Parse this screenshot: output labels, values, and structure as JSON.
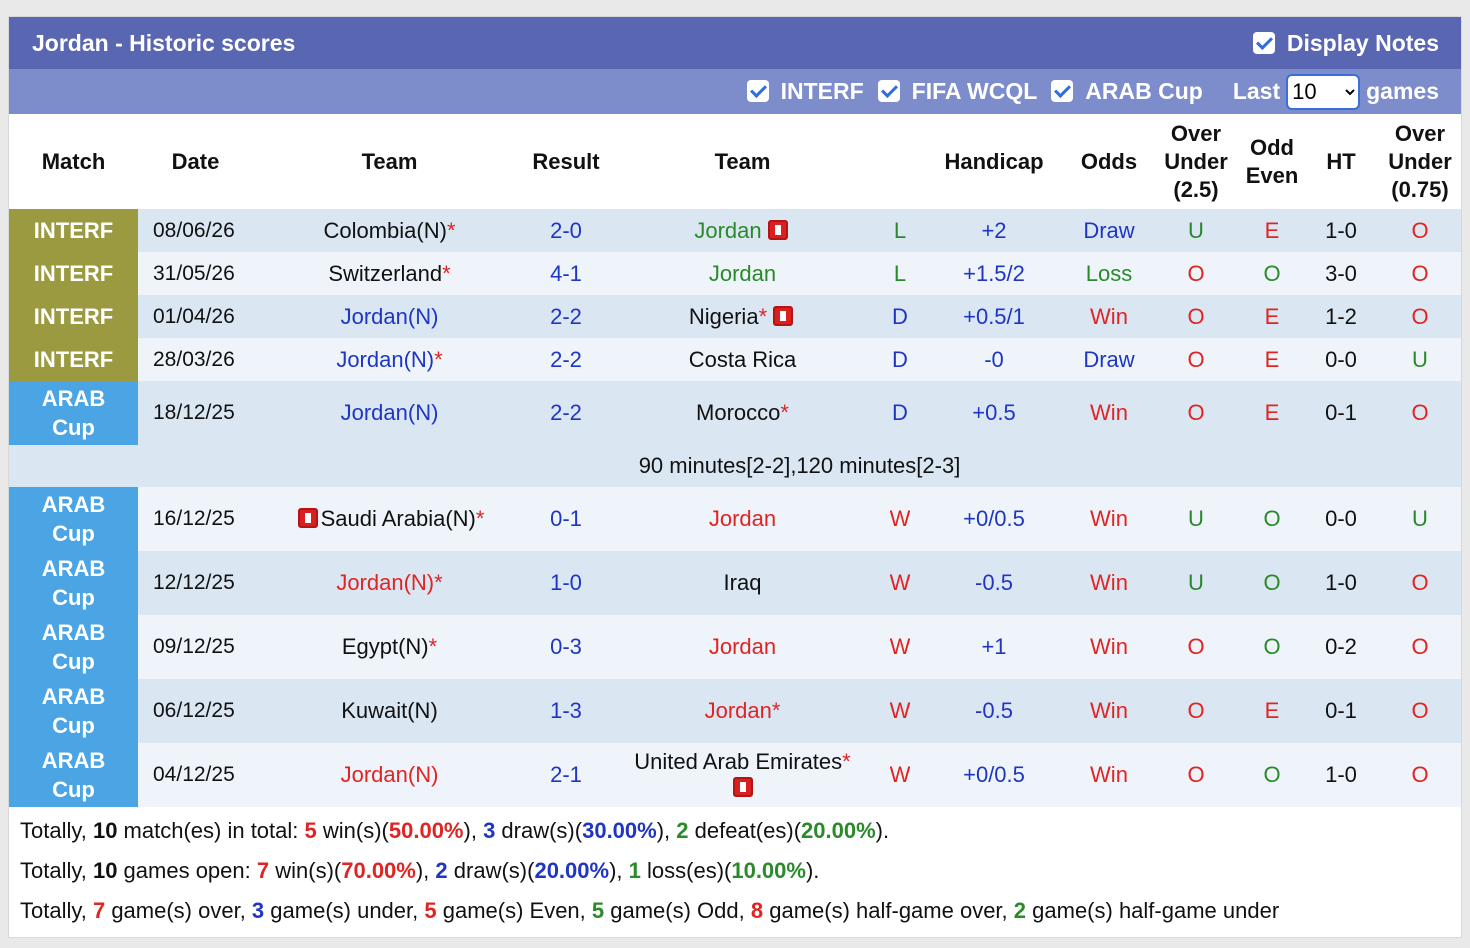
{
  "header": {
    "title": "Jordan - Historic scores",
    "display_notes": "Display Notes",
    "filters": [
      "INTERF",
      "FIFA WCQL",
      "ARAB Cup"
    ],
    "last_label": "Last",
    "last_value": "10",
    "games_label": "games"
  },
  "columns": [
    "Match",
    "Date",
    "Team",
    "Result",
    "Team",
    "Handicap",
    "Odds",
    "Over Under (2.5)",
    "Odd Even",
    "HT",
    "Over Under (0.75)"
  ],
  "colors": {
    "match": {
      "INTERF": "#9b9a40",
      "ARAB Cup": "#4ba4e4"
    },
    "outcome": {
      "W": "#e02424",
      "D": "#1f35c4",
      "L": "#2a8a2a"
    },
    "odds": {
      "Win": "#e02424",
      "Draw": "#1f35c4",
      "Loss": "#2a8a2a"
    },
    "ou": {
      "O": "#e02424",
      "U": "#2a8a2a"
    },
    "oe": {
      "E": "#e02424",
      "O": "#2a8a2a"
    },
    "result": "#1f35c4",
    "star": "#e02424"
  },
  "rows": [
    {
      "match": "INTERF",
      "date": "08/06/26",
      "home": {
        "name": "Colombia(N)",
        "star": "*",
        "color": "#111111"
      },
      "result": "2-0",
      "away": {
        "name": "Jordan",
        "color": "#2a8a2a",
        "card": "after"
      },
      "outcome": "L",
      "handicap": "+2",
      "odds": "Draw",
      "ou": "U",
      "oe": "E",
      "ht": "1-0",
      "ou2": "O"
    },
    {
      "match": "INTERF",
      "date": "31/05/26",
      "home": {
        "name": "Switzerland",
        "star": "*",
        "color": "#111111"
      },
      "result": "4-1",
      "away": {
        "name": "Jordan",
        "color": "#2a8a2a"
      },
      "outcome": "L",
      "handicap": "+1.5/2",
      "odds": "Loss",
      "ou": "O",
      "oe": "O",
      "ht": "3-0",
      "ou2": "O"
    },
    {
      "match": "INTERF",
      "date": "01/04/26",
      "home": {
        "name": "Jordan(N)",
        "color": "#1f35c4"
      },
      "result": "2-2",
      "away": {
        "name": "Nigeria",
        "star": "*",
        "color": "#111111",
        "card": "after"
      },
      "outcome": "D",
      "handicap": "+0.5/1",
      "odds": "Win",
      "ou": "O",
      "oe": "E",
      "ht": "1-2",
      "ou2": "O"
    },
    {
      "match": "INTERF",
      "date": "28/03/26",
      "home": {
        "name": "Jordan(N)",
        "star": "*",
        "color": "#1f35c4"
      },
      "result": "2-2",
      "away": {
        "name": "Costa Rica",
        "color": "#111111"
      },
      "outcome": "D",
      "handicap": "-0",
      "odds": "Draw",
      "ou": "O",
      "oe": "E",
      "ht": "0-0",
      "ou2": "U"
    },
    {
      "match": "ARAB Cup",
      "date": "18/12/25",
      "home": {
        "name": "Jordan(N)",
        "color": "#1f35c4"
      },
      "result": "2-2",
      "away": {
        "name": "Morocco",
        "star": "*",
        "color": "#111111"
      },
      "outcome": "D",
      "handicap": "+0.5",
      "odds": "Win",
      "ou": "O",
      "oe": "E",
      "ht": "0-1",
      "ou2": "O",
      "note": "90 minutes[2-2],120 minutes[2-3]"
    },
    {
      "match": "ARAB Cup",
      "date": "16/12/25",
      "home": {
        "name": "Saudi Arabia(N)",
        "star": "*",
        "color": "#111111",
        "card": "before"
      },
      "result": "0-1",
      "away": {
        "name": "Jordan",
        "color": "#e02424"
      },
      "outcome": "W",
      "handicap": "+0/0.5",
      "odds": "Win",
      "ou": "U",
      "oe": "O",
      "ht": "0-0",
      "ou2": "U"
    },
    {
      "match": "ARAB Cup",
      "date": "12/12/25",
      "home": {
        "name": "Jordan(N)",
        "star": "*",
        "color": "#e02424"
      },
      "result": "1-0",
      "away": {
        "name": "Iraq",
        "color": "#111111"
      },
      "outcome": "W",
      "handicap": "-0.5",
      "odds": "Win",
      "ou": "U",
      "oe": "O",
      "ht": "1-0",
      "ou2": "O"
    },
    {
      "match": "ARAB Cup",
      "date": "09/12/25",
      "home": {
        "name": "Egypt(N)",
        "star": "*",
        "color": "#111111"
      },
      "result": "0-3",
      "away": {
        "name": "Jordan",
        "color": "#e02424"
      },
      "outcome": "W",
      "handicap": "+1",
      "odds": "Win",
      "ou": "O",
      "oe": "O",
      "ht": "0-2",
      "ou2": "O"
    },
    {
      "match": "ARAB Cup",
      "date": "06/12/25",
      "home": {
        "name": "Kuwait(N)",
        "color": "#111111"
      },
      "result": "1-3",
      "away": {
        "name": "Jordan",
        "star": "*",
        "color": "#e02424"
      },
      "outcome": "W",
      "handicap": "-0.5",
      "odds": "Win",
      "ou": "O",
      "oe": "E",
      "ht": "0-1",
      "ou2": "O"
    },
    {
      "match": "ARAB Cup",
      "date": "04/12/25",
      "home": {
        "name": "Jordan(N)",
        "color": "#e02424"
      },
      "result": "2-1",
      "away": {
        "name": "United Arab Emirates",
        "star": "*",
        "color": "#111111",
        "card": "below"
      },
      "outcome": "W",
      "handicap": "+0/0.5",
      "odds": "Win",
      "ou": "O",
      "oe": "O",
      "ht": "1-0",
      "ou2": "O"
    }
  ],
  "summary_styles": {
    "b": "#111111",
    "r": "#e02424",
    "u": "#1f35c4",
    "g": "#2a8a2a"
  },
  "summary": [
    [
      [
        "Totally, ",
        ""
      ],
      [
        "10",
        "b"
      ],
      [
        " match(es) in total: ",
        ""
      ],
      [
        "5",
        "r"
      ],
      [
        " win(s)(",
        ""
      ],
      [
        "50.00%",
        "r"
      ],
      [
        "), ",
        ""
      ],
      [
        "3",
        "u"
      ],
      [
        " draw(s)(",
        ""
      ],
      [
        "30.00%",
        "u"
      ],
      [
        "), ",
        ""
      ],
      [
        "2",
        "g"
      ],
      [
        " defeat(es)(",
        ""
      ],
      [
        "20.00%",
        "g"
      ],
      [
        ").",
        ""
      ]
    ],
    [
      [
        "Totally, ",
        ""
      ],
      [
        "10",
        "b"
      ],
      [
        " games open: ",
        ""
      ],
      [
        "7",
        "r"
      ],
      [
        " win(s)(",
        ""
      ],
      [
        "70.00%",
        "r"
      ],
      [
        "), ",
        ""
      ],
      [
        "2",
        "u"
      ],
      [
        " draw(s)(",
        ""
      ],
      [
        "20.00%",
        "u"
      ],
      [
        "), ",
        ""
      ],
      [
        "1",
        "g"
      ],
      [
        " loss(es)(",
        ""
      ],
      [
        "10.00%",
        "g"
      ],
      [
        ").",
        ""
      ]
    ],
    [
      [
        "Totally, ",
        ""
      ],
      [
        "7",
        "r"
      ],
      [
        " game(s) over, ",
        ""
      ],
      [
        "3",
        "u"
      ],
      [
        " game(s) under, ",
        ""
      ],
      [
        "5",
        "r"
      ],
      [
        " game(s) Even, ",
        ""
      ],
      [
        "5",
        "g"
      ],
      [
        " game(s) Odd, ",
        ""
      ],
      [
        "8",
        "r"
      ],
      [
        " game(s) half-game over, ",
        ""
      ],
      [
        "2",
        "g"
      ],
      [
        " game(s) half-game under",
        ""
      ]
    ]
  ]
}
